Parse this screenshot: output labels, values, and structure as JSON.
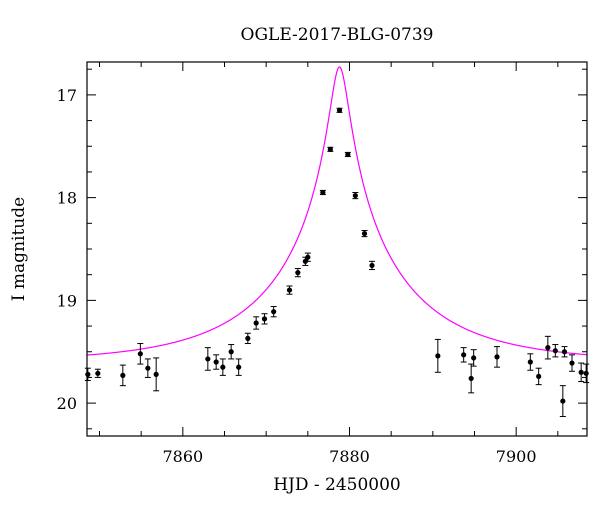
{
  "chart_data": {
    "type": "scatter",
    "title": "OGLE-2017-BLG-0739",
    "xlabel": "HJD - 2450000",
    "ylabel": "I magnitude",
    "xlim": [
      7848.5,
      7908.5
    ],
    "ylim": [
      20.32,
      16.68
    ],
    "y_inverted": true,
    "x_ticks": [
      7860,
      7880,
      7900
    ],
    "x_tick_labels": [
      "7860",
      "7880",
      "7900"
    ],
    "y_ticks": [
      17,
      18,
      19,
      20
    ],
    "y_tick_labels": [
      "17",
      "18",
      "19",
      "20"
    ],
    "grid": false,
    "model": {
      "color": "#ff00ff",
      "t0": 7878.8,
      "tE": 16.0,
      "u0": 0.065,
      "I_source": 19.705,
      "I_baseline": 19.6
    },
    "series": [
      {
        "marker_color": "#000000",
        "x": [
          7848.6,
          7849.8,
          7852.8,
          7854.9,
          7855.8,
          7856.8,
          7863.0,
          7864.0,
          7864.8,
          7865.8,
          7866.7,
          7867.8,
          7868.8,
          7869.8,
          7870.9,
          7872.8,
          7873.8,
          7874.7,
          7875.0,
          7876.8,
          7877.7,
          7878.8,
          7879.8,
          7880.7,
          7881.8,
          7882.7,
          7890.6,
          7893.7,
          7894.6,
          7894.9,
          7897.7,
          7901.7,
          7902.7,
          7903.8,
          7904.7,
          7905.6,
          7905.8,
          7906.7,
          7907.8,
          7908.4
        ],
        "y": [
          19.72,
          19.71,
          19.73,
          19.52,
          19.66,
          19.72,
          19.57,
          19.6,
          19.65,
          19.5,
          19.65,
          19.37,
          19.22,
          19.18,
          19.11,
          18.9,
          18.73,
          18.62,
          18.58,
          17.95,
          17.53,
          17.15,
          17.58,
          17.98,
          18.35,
          18.66,
          19.54,
          19.53,
          19.76,
          19.56,
          19.55,
          19.6,
          19.74,
          19.46,
          19.49,
          19.98,
          19.5,
          19.61,
          19.7,
          19.71
        ],
        "err": [
          0.06,
          0.04,
          0.1,
          0.1,
          0.09,
          0.16,
          0.11,
          0.07,
          0.08,
          0.07,
          0.08,
          0.05,
          0.06,
          0.05,
          0.05,
          0.04,
          0.04,
          0.04,
          0.04,
          0.02,
          0.02,
          0.02,
          0.02,
          0.03,
          0.03,
          0.04,
          0.16,
          0.07,
          0.14,
          0.08,
          0.1,
          0.08,
          0.08,
          0.11,
          0.06,
          0.15,
          0.05,
          0.08,
          0.09,
          0.09
        ]
      }
    ]
  }
}
